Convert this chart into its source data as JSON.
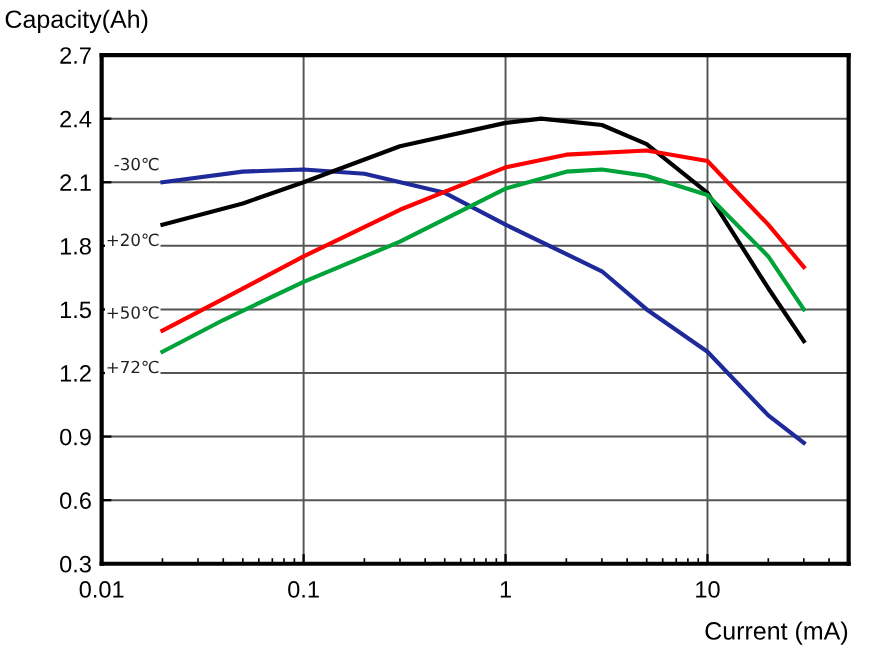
{
  "chart_data": {
    "type": "line",
    "ylabel": "Capacity(Ah)",
    "xlabel": "Current (mA)",
    "log": "x",
    "grid": true,
    "legend": false,
    "marker": "none",
    "line_style": "solid",
    "xlim": [
      0.01,
      50
    ],
    "xticks": [
      0.01,
      0.1,
      1,
      10
    ],
    "ylim": [
      0.3,
      2.7
    ],
    "yticks": [
      0.3,
      0.6,
      0.9,
      1.2,
      1.5,
      1.8,
      2.1,
      2.4,
      2.7
    ],
    "series": [
      {
        "name": "-30℃",
        "color": "#1f2a9a",
        "x": [
          0.02,
          0.05,
          0.1,
          0.2,
          0.5,
          1,
          3,
          5,
          10,
          20,
          30
        ],
        "values": [
          2.1,
          2.15,
          2.16,
          2.14,
          2.05,
          1.9,
          1.68,
          1.5,
          1.3,
          1.0,
          0.87
        ]
      },
      {
        "name": "+20℃",
        "color": "#000000",
        "x": [
          0.02,
          0.05,
          0.1,
          0.3,
          1,
          1.5,
          3,
          5,
          10,
          20,
          30
        ],
        "values": [
          1.9,
          2.0,
          2.1,
          2.27,
          2.38,
          2.4,
          2.37,
          2.28,
          2.05,
          1.6,
          1.35
        ]
      },
      {
        "name": "+50℃",
        "color": "#ff0000",
        "x": [
          0.02,
          0.04,
          0.1,
          0.3,
          1,
          2,
          5,
          10,
          20,
          30
        ],
        "values": [
          1.4,
          1.55,
          1.75,
          1.97,
          2.17,
          2.23,
          2.25,
          2.2,
          1.9,
          1.7
        ]
      },
      {
        "name": "+72℃",
        "color": "#00a33a",
        "x": [
          0.02,
          0.04,
          0.1,
          0.3,
          1,
          2,
          3,
          5,
          10,
          20,
          30
        ],
        "values": [
          1.3,
          1.45,
          1.63,
          1.82,
          2.07,
          2.15,
          2.16,
          2.13,
          2.04,
          1.75,
          1.5
        ]
      }
    ]
  }
}
